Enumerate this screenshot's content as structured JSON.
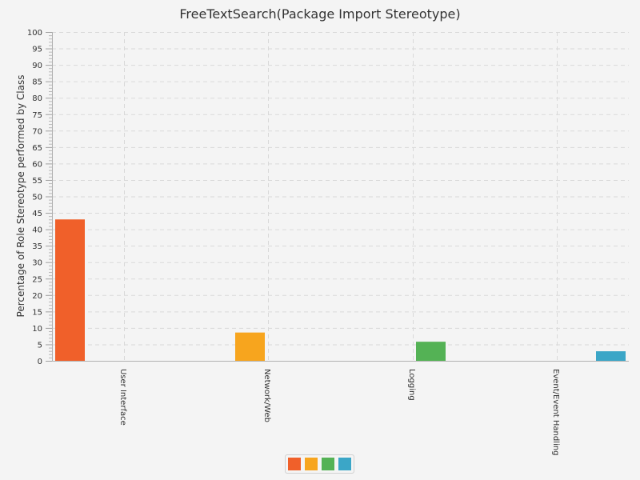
{
  "chart_data": {
    "type": "bar",
    "title": "FreeTextSearch(Package Import Stereotype)",
    "xlabel": "",
    "ylabel": "Percentage of Role Stereotype performed by Class",
    "categories": [
      "User Interface",
      "Network/Web",
      "Logging",
      "Event/Event Handling"
    ],
    "series": [
      {
        "values": [
          43,
          null,
          null,
          null
        ],
        "color": "#f0602a"
      },
      {
        "values": [
          null,
          8.6,
          null,
          null
        ],
        "color": "#f7a51e"
      },
      {
        "values": [
          null,
          null,
          5.8,
          null
        ],
        "color": "#54b255"
      },
      {
        "values": [
          null,
          null,
          null,
          2.9
        ],
        "color": "#3ba6c7"
      }
    ],
    "ylim": [
      0,
      100
    ],
    "yticks": [
      0,
      5,
      10,
      15,
      20,
      25,
      30,
      35,
      40,
      45,
      50,
      55,
      60,
      65,
      70,
      75,
      80,
      85,
      90,
      95,
      100
    ],
    "grid": true,
    "legend": "bottom-center"
  }
}
